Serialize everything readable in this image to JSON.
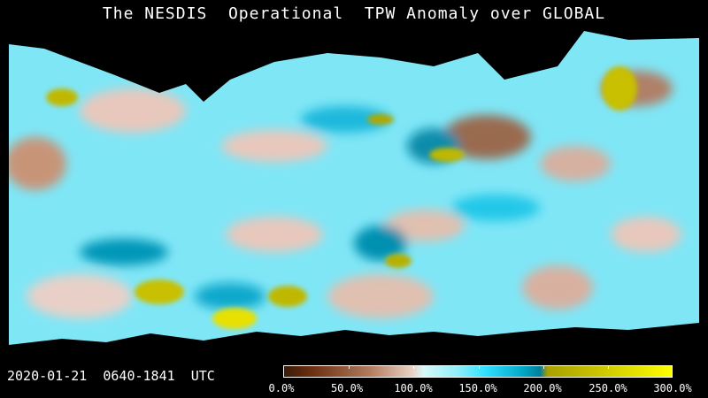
{
  "title": "The NESDIS  Operational  TPW Anomaly over GLOBAL",
  "timestamp": "2020-01-21  0640-1841  UTC",
  "colorbar": {
    "labels": [
      "0.0%",
      "50.0%",
      "100.0%",
      "150.0%",
      "200.0%",
      "250.0%",
      "300.0%"
    ],
    "range": [
      0,
      300
    ],
    "colors": {
      "low": "#3a1a08",
      "mid_low": "#ead0c4",
      "normal": "#d8f8f8",
      "high": "#30e0ff",
      "very_high": "#007f9a",
      "extreme": "#ffff00"
    }
  }
}
